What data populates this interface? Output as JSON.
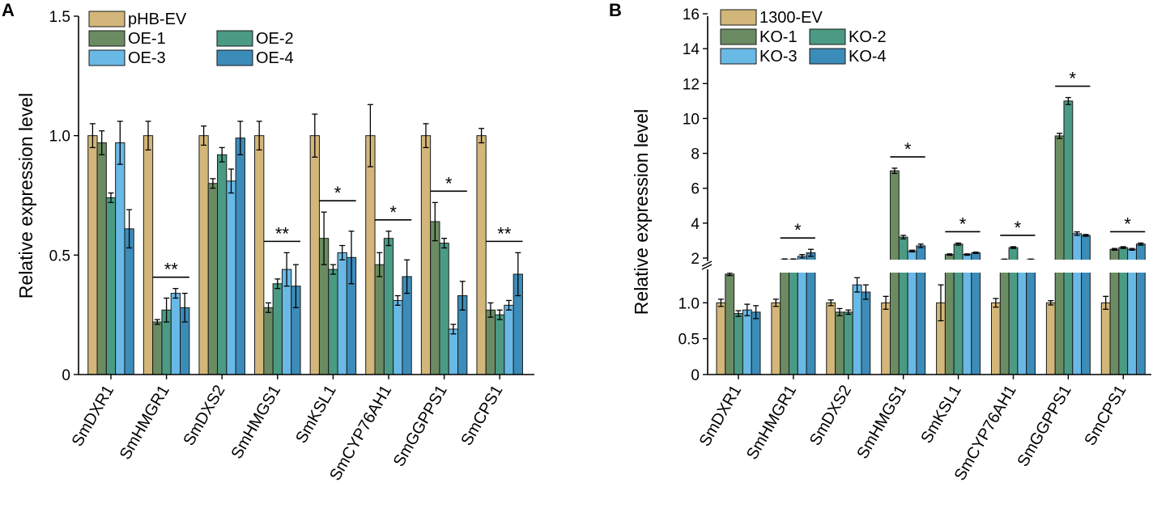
{
  "chart_data": [
    {
      "type": "bar",
      "panel_label": "A",
      "title": "",
      "ylabel": "Relative expression level",
      "xlabel": "",
      "ylim": [
        0,
        1.5
      ],
      "yticks": [
        "0",
        "0.5",
        "1.0",
        "1.5"
      ],
      "categories": [
        "SmDXR1",
        "SmHMGR1",
        "SmDXS2",
        "SmHMGS1",
        "SmKSL1",
        "SmCYP76AH1",
        "SmGGPPS1",
        "SmCPS1"
      ],
      "series": [
        {
          "name": "pHB-EV",
          "color": "#d3b679",
          "values": [
            1.0,
            1.0,
            1.0,
            1.0,
            1.0,
            1.0,
            1.0,
            1.0
          ],
          "errors": [
            0.05,
            0.06,
            0.04,
            0.06,
            0.09,
            0.13,
            0.05,
            0.03
          ]
        },
        {
          "name": "OE-1",
          "color": "#6b8c62",
          "values": [
            0.97,
            0.22,
            0.8,
            0.28,
            0.57,
            0.46,
            0.64,
            0.27
          ],
          "errors": [
            0.05,
            0.01,
            0.02,
            0.02,
            0.11,
            0.05,
            0.08,
            0.03
          ]
        },
        {
          "name": "OE-2",
          "color": "#4b9b84",
          "values": [
            0.74,
            0.27,
            0.92,
            0.38,
            0.44,
            0.57,
            0.55,
            0.25
          ],
          "errors": [
            0.02,
            0.05,
            0.03,
            0.02,
            0.02,
            0.03,
            0.02,
            0.02
          ]
        },
        {
          "name": "OE-3",
          "color": "#69b9e6",
          "values": [
            0.97,
            0.34,
            0.81,
            0.44,
            0.51,
            0.31,
            0.19,
            0.29
          ],
          "errors": [
            0.09,
            0.02,
            0.05,
            0.07,
            0.03,
            0.02,
            0.02,
            0.02
          ]
        },
        {
          "name": "OE-4",
          "color": "#3c8cb9",
          "values": [
            0.61,
            0.28,
            0.99,
            0.37,
            0.49,
            0.41,
            0.33,
            0.42
          ],
          "errors": [
            0.08,
            0.06,
            0.07,
            0.09,
            0.11,
            0.07,
            0.06,
            0.09
          ]
        }
      ],
      "significance": [
        "",
        "**",
        "",
        "**",
        "*",
        "*",
        "*",
        "**"
      ],
      "legend_position": "top-left"
    },
    {
      "type": "bar",
      "panel_label": "B",
      "title": "",
      "ylabel": "Relative expression level",
      "xlabel": "",
      "ylim": [
        0,
        16
      ],
      "axis_break": {
        "lower_max": 1.5,
        "upper_min": 2
      },
      "yticks": [
        "0",
        "0.5",
        "1.0",
        "2",
        "4",
        "6",
        "8",
        "10",
        "12",
        "14",
        "16"
      ],
      "categories": [
        "SmDXR1",
        "SmHMGR1",
        "SmDXS2",
        "SmHMGS1",
        "SmKSL1",
        "SmCYP76AH1",
        "SmGGPPS1",
        "SmCPS1"
      ],
      "series": [
        {
          "name": "1300-EV",
          "color": "#d3b679",
          "values": [
            1.0,
            1.0,
            1.0,
            1.0,
            1.0,
            1.0,
            1.0,
            1.0
          ],
          "errors": [
            0.05,
            0.05,
            0.04,
            0.09,
            0.25,
            0.06,
            0.03,
            0.09
          ]
        },
        {
          "name": "KO-1",
          "color": "#6b8c62",
          "values": [
            1.4,
            1.9,
            0.87,
            7.0,
            2.2,
            1.9,
            9.0,
            2.5
          ],
          "errors": [
            0.02,
            0.05,
            0.05,
            0.15,
            0.04,
            0.04,
            0.15,
            0.05
          ]
        },
        {
          "name": "KO-2",
          "color": "#4b9b84",
          "values": [
            0.85,
            1.9,
            0.87,
            3.2,
            2.8,
            2.6,
            11.0,
            2.6
          ],
          "errors": [
            0.04,
            0.05,
            0.03,
            0.1,
            0.06,
            0.05,
            0.2,
            0.05
          ]
        },
        {
          "name": "KO-3",
          "color": "#69b9e6",
          "values": [
            0.9,
            2.1,
            1.25,
            2.4,
            2.2,
            1.8,
            3.4,
            2.5
          ],
          "errors": [
            0.08,
            0.1,
            0.1,
            0.05,
            0.04,
            0.04,
            0.1,
            0.05
          ]
        },
        {
          "name": "KO-4",
          "color": "#3c8cb9",
          "values": [
            0.87,
            2.3,
            1.15,
            2.7,
            2.3,
            1.9,
            3.3,
            2.8
          ],
          "errors": [
            0.09,
            0.2,
            0.1,
            0.1,
            0.04,
            0.04,
            0.05,
            0.06
          ]
        }
      ],
      "significance": [
        "",
        "*",
        "",
        "*",
        "*",
        "*",
        "*",
        "*"
      ],
      "legend_position": "top-left"
    }
  ]
}
